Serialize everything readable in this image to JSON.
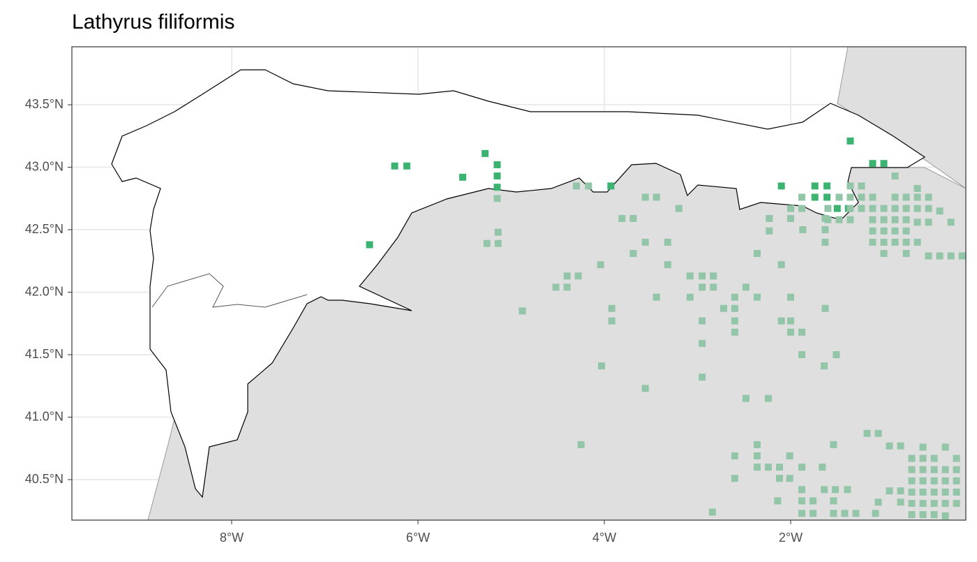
{
  "chart_data": {
    "type": "scatter",
    "title": "Lathyrus filiformis",
    "xlim": [
      -9.715,
      -0.12
    ],
    "ylim": [
      40.176,
      43.964
    ],
    "xticks": [
      {
        "value": -8,
        "label": "8°W"
      },
      {
        "value": -6,
        "label": "6°W"
      },
      {
        "value": -4,
        "label": "4°W"
      },
      {
        "value": -2,
        "label": "2°W"
      }
    ],
    "yticks": [
      {
        "value": 40.5,
        "label": "40.5°N"
      },
      {
        "value": 41.0,
        "label": "41.0°N"
      },
      {
        "value": 41.5,
        "label": "41.5°N"
      },
      {
        "value": 42.0,
        "label": "42.0°N"
      },
      {
        "value": 42.5,
        "label": "42.5°N"
      },
      {
        "value": 43.0,
        "label": "43.0°N"
      },
      {
        "value": 43.5,
        "label": "43.5°N"
      }
    ],
    "grid": true,
    "series": [
      {
        "color": "#3cb371",
        "x": [
          -6.52,
          -6.25,
          -6.12,
          -5.52,
          -5.28,
          -5.15,
          -5.15,
          -5.15,
          -3.93,
          -2.1,
          -1.74,
          -1.61,
          -1.74,
          -1.61,
          -1.36,
          -1.12,
          -1.0,
          -1.5,
          -1.38
        ],
        "values": [
          42.38,
          43.01,
          43.01,
          42.92,
          43.11,
          43.02,
          42.93,
          42.84,
          42.85,
          42.85,
          42.85,
          42.85,
          42.76,
          42.76,
          43.21,
          43.03,
          43.03,
          42.67,
          42.67
        ]
      },
      {
        "color": "#93c5a8",
        "x": [
          -5.15,
          -5.14,
          -5.26,
          -5.14,
          -4.3,
          -4.17,
          -3.56,
          -3.44,
          -3.81,
          -3.69,
          -3.56,
          -3.69,
          -3.32,
          -3.32,
          -3.2,
          -4.04,
          -4.4,
          -4.28,
          -4.52,
          -4.4,
          -4.88,
          -3.92,
          -3.92,
          -3.44,
          -3.08,
          -2.95,
          -2.83,
          -3.08,
          -2.95,
          -2.83,
          -2.95,
          -2.95,
          -2.72,
          -2.6,
          -2.6,
          -2.6,
          -2.6,
          -2.48,
          -2.36,
          -2.36,
          -2.23,
          -2.23,
          -2.1,
          -2.0,
          -2.0,
          -2.0,
          -2.1,
          -2.0,
          -2.0,
          -1.88,
          -1.88,
          -1.88,
          -1.88,
          -1.87,
          -1.63,
          -1.63,
          -1.63,
          -1.63,
          -1.51,
          -1.64,
          -4.03,
          -3.56,
          -2.95,
          -2.48,
          -2.24,
          -4.25,
          -2.6,
          -2.6,
          -2.36,
          -2.36,
          -2.36,
          -2.24,
          -2.12,
          -2.01,
          -2.12,
          -2.01,
          -1.88,
          -1.66,
          -1.54,
          -2.14,
          -1.88,
          -1.88,
          -1.76,
          -1.88,
          -1.76,
          -1.64,
          -1.52,
          -1.39,
          -1.54,
          -1.54,
          -1.42,
          -1.3,
          -2.84,
          -1.18,
          -1.06,
          -0.94,
          -0.82,
          -1.06,
          -1.09,
          -0.94,
          -0.82,
          -0.82,
          -0.7,
          -0.58,
          -0.58,
          -0.46,
          -0.34,
          -0.22,
          -0.7,
          -0.58,
          -0.46,
          -0.34,
          -0.22,
          -0.7,
          -0.58,
          -0.46,
          -0.34,
          -0.22,
          -0.7,
          -0.58,
          -0.46,
          -0.34,
          -0.22,
          -0.7,
          -0.58,
          -0.46,
          -0.34,
          -0.22,
          -0.7,
          -0.58,
          -0.46,
          -0.34,
          -1.36,
          -1.24,
          -1.36,
          -1.24,
          -1.12,
          -1.48,
          -1.36,
          -1.24,
          -1.12,
          -1.0,
          -0.88,
          -0.76,
          -0.64,
          -0.52,
          -0.4,
          -1.12,
          -1.0,
          -0.88,
          -0.76,
          -0.64,
          -0.52,
          -0.28,
          -1.12,
          -1.0,
          -0.88,
          -0.76,
          -1.12,
          -1.0,
          -0.88,
          -0.76,
          -0.64,
          -1.0,
          -0.76,
          -0.52,
          -0.4,
          -0.28,
          -0.16,
          -1.6,
          -1.48,
          -1.36,
          -0.88,
          -0.76,
          -0.64,
          -0.52,
          -0.64,
          -0.88,
          -1.6
        ],
        "values": [
          42.75,
          42.48,
          42.39,
          42.39,
          42.85,
          42.85,
          42.76,
          42.76,
          42.59,
          42.59,
          42.4,
          42.31,
          42.4,
          42.22,
          42.67,
          42.22,
          42.13,
          42.13,
          42.04,
          42.04,
          41.85,
          41.87,
          41.77,
          41.96,
          42.13,
          42.13,
          42.13,
          41.96,
          42.04,
          42.04,
          41.77,
          41.59,
          41.87,
          41.96,
          41.87,
          41.77,
          41.68,
          42.04,
          41.96,
          42.31,
          42.59,
          42.49,
          42.22,
          42.67,
          42.59,
          41.96,
          41.77,
          41.77,
          41.68,
          41.68,
          41.5,
          42.76,
          42.67,
          42.5,
          42.59,
          42.5,
          42.4,
          41.87,
          41.5,
          41.41,
          41.41,
          41.23,
          41.32,
          41.15,
          41.15,
          40.78,
          40.69,
          40.51,
          40.78,
          40.69,
          40.6,
          40.6,
          40.6,
          40.69,
          40.51,
          40.51,
          40.6,
          40.6,
          40.78,
          40.33,
          40.42,
          40.33,
          40.33,
          40.23,
          40.23,
          40.42,
          40.42,
          40.42,
          40.33,
          40.23,
          40.23,
          40.23,
          40.24,
          40.87,
          40.87,
          40.77,
          40.77,
          40.32,
          40.23,
          40.41,
          40.41,
          40.32,
          40.67,
          40.76,
          40.67,
          40.67,
          40.76,
          40.67,
          40.58,
          40.58,
          40.58,
          40.58,
          40.58,
          40.49,
          40.49,
          40.49,
          40.49,
          40.49,
          40.4,
          40.4,
          40.4,
          40.4,
          40.4,
          40.31,
          40.31,
          40.31,
          40.31,
          40.31,
          40.22,
          40.22,
          40.22,
          40.21,
          42.85,
          42.85,
          42.76,
          42.76,
          42.76,
          42.76,
          42.67,
          42.67,
          42.67,
          42.67,
          42.67,
          42.67,
          42.67,
          42.67,
          42.65,
          42.58,
          42.58,
          42.58,
          42.58,
          42.56,
          42.56,
          42.56,
          42.49,
          42.49,
          42.49,
          42.49,
          42.4,
          42.4,
          42.4,
          42.4,
          42.4,
          42.31,
          42.31,
          42.29,
          42.29,
          42.29,
          42.29,
          42.58,
          42.58,
          42.58,
          42.76,
          42.76,
          42.76,
          42.76,
          42.83,
          42.93,
          42.67
        ]
      }
    ]
  }
}
